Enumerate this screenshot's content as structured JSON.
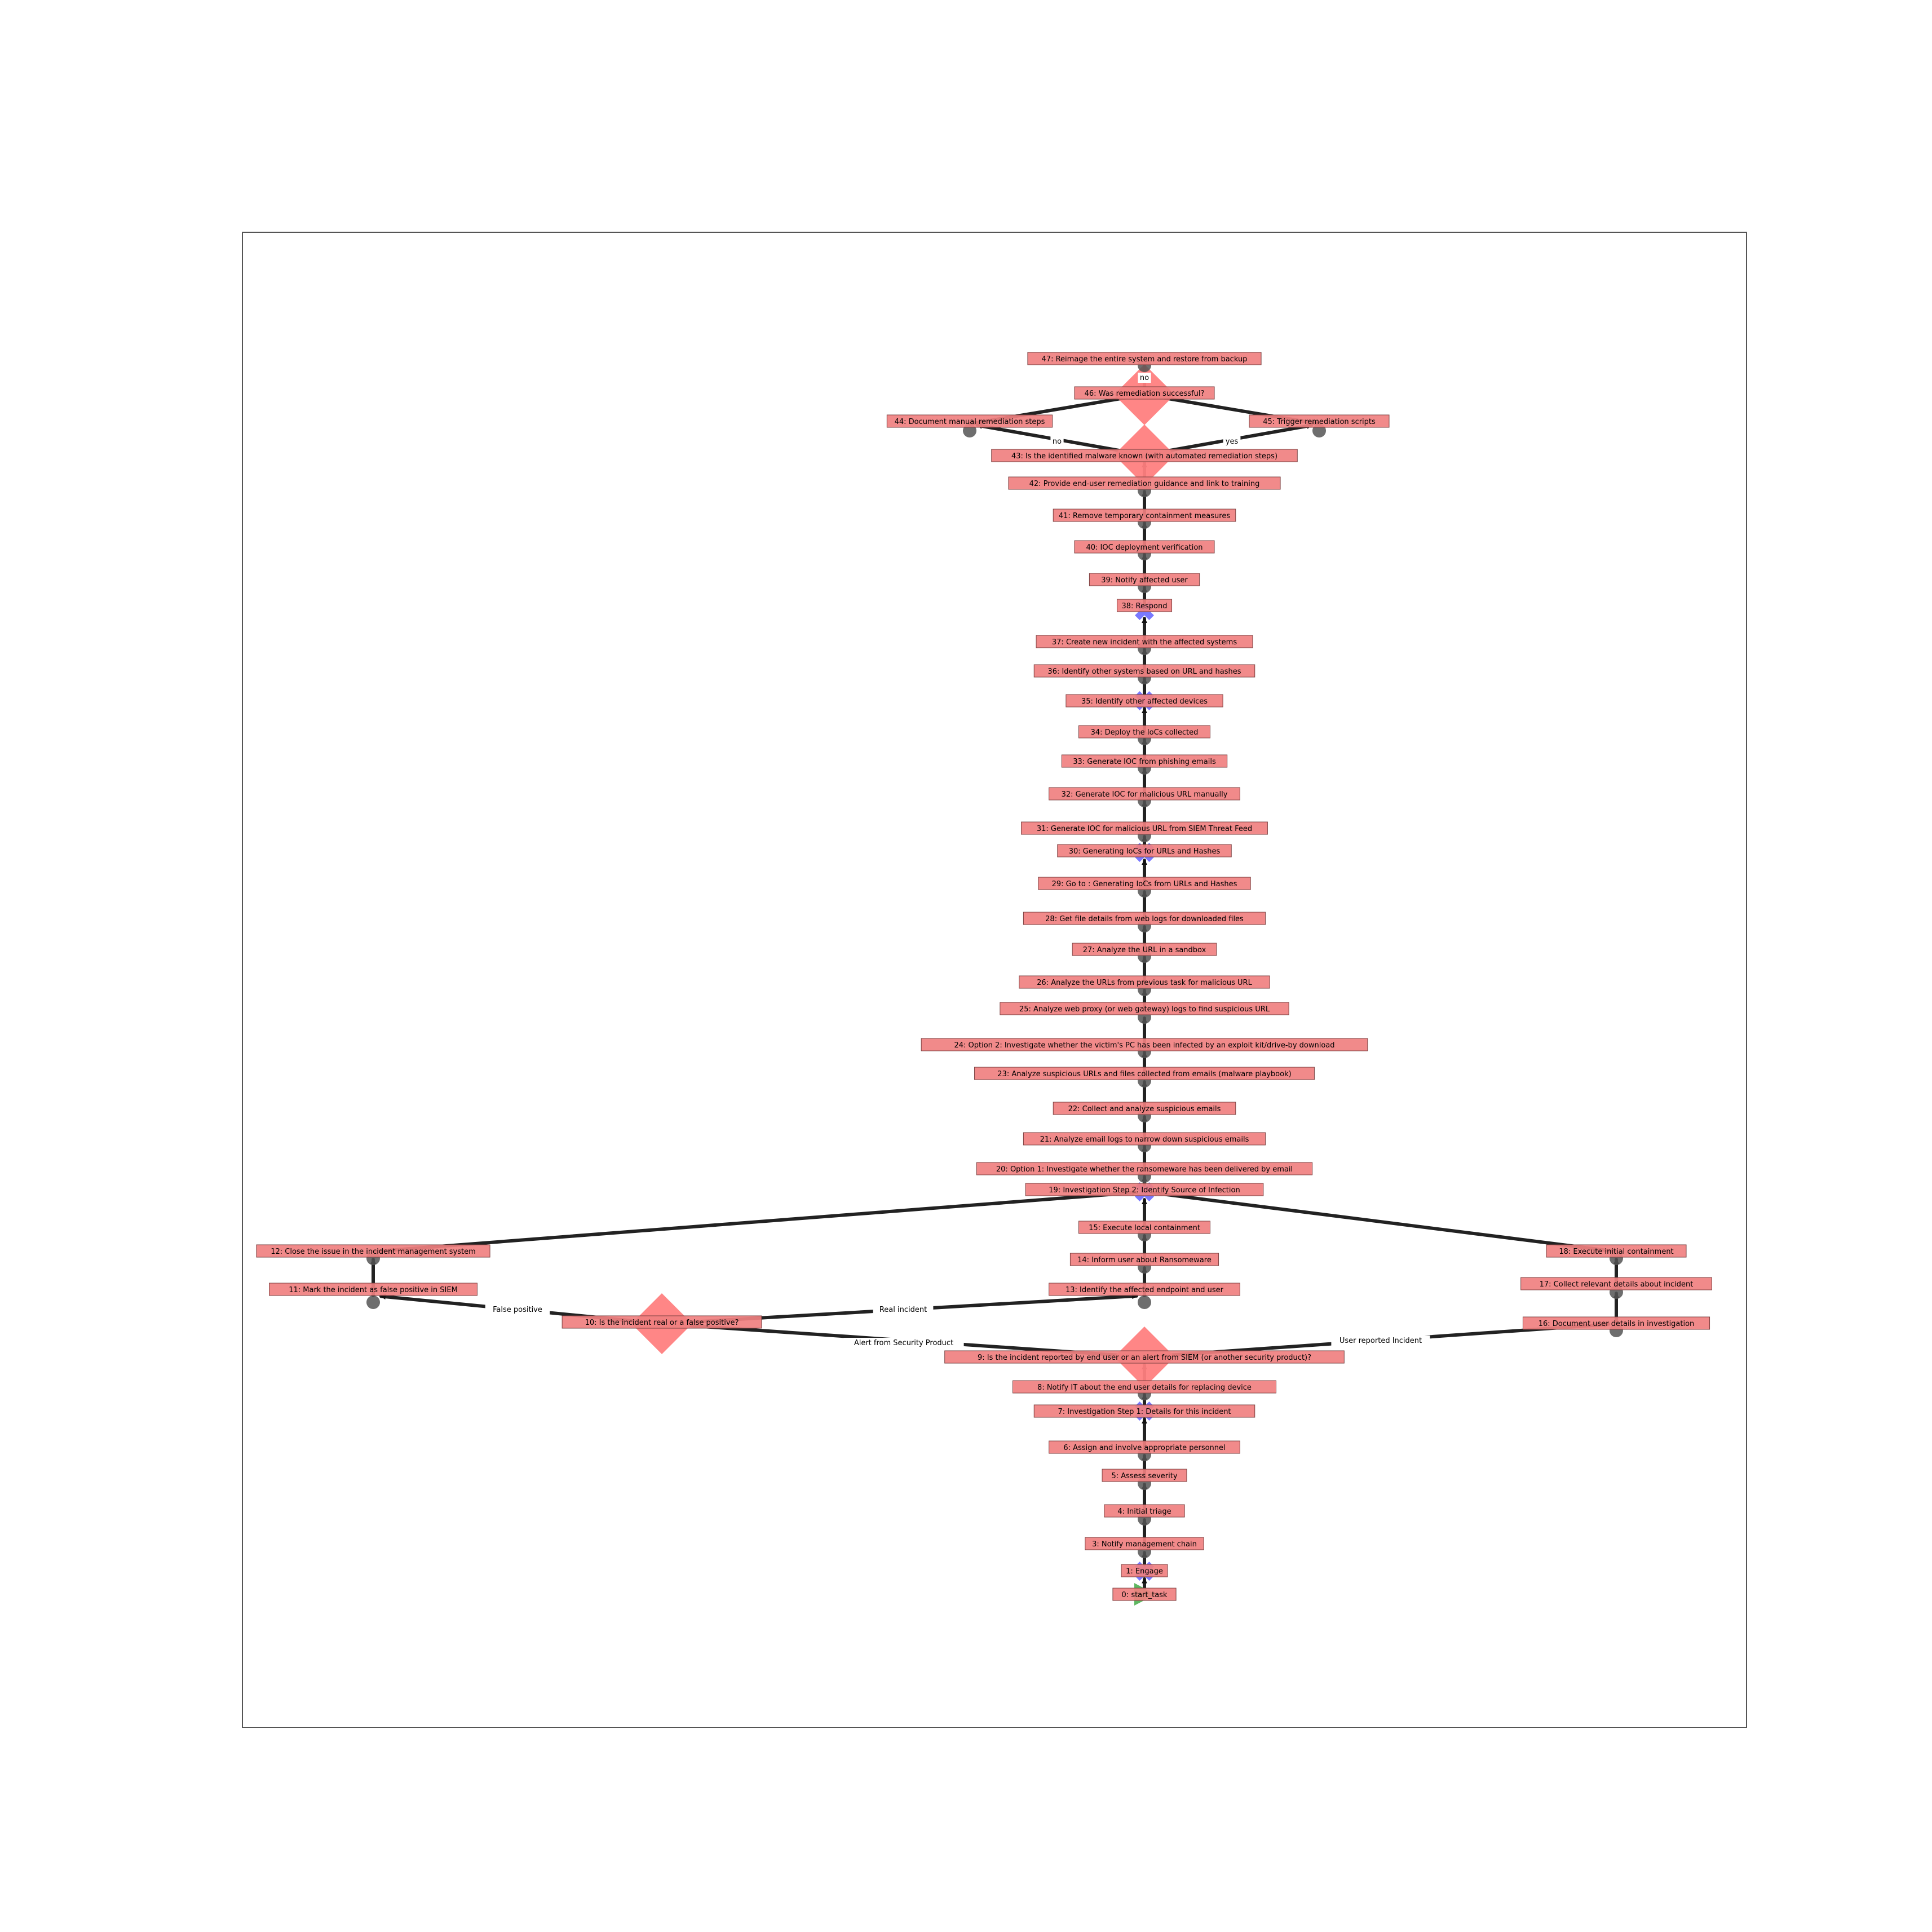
{
  "colors": {
    "node_box": "#f08080",
    "node_box_border": "#7a4040",
    "decision": "#ff7f7f",
    "gateway": "#6a6aff",
    "start": "#4caf50",
    "edge": "#222222",
    "connector": "#555555"
  },
  "nodes": [
    {
      "id": 0,
      "label": "0: start_task",
      "shape": "start-triangle"
    },
    {
      "id": 1,
      "label": "1: Engage",
      "shape": "gateway"
    },
    {
      "id": 3,
      "label": "3: Notify management chain",
      "shape": "circle"
    },
    {
      "id": 4,
      "label": "4: Initial triage",
      "shape": "circle"
    },
    {
      "id": 5,
      "label": "5: Assess severity",
      "shape": "circle"
    },
    {
      "id": 6,
      "label": "6: Assign and involve appropriate personnel",
      "shape": "circle"
    },
    {
      "id": 7,
      "label": "7: Investigation Step 1: Details for this incident",
      "shape": "gateway"
    },
    {
      "id": 8,
      "label": "8: Notify IT about the end user details for replacing device",
      "shape": "circle"
    },
    {
      "id": 9,
      "label": "9: Is the incident reported by end user or an alert from SIEM (or another security product)?",
      "shape": "decision"
    },
    {
      "id": 10,
      "label": "10: Is the incident real or a false positive?",
      "shape": "decision"
    },
    {
      "id": 11,
      "label": "11: Mark the incident as false positive in SIEM",
      "shape": "circle"
    },
    {
      "id": 12,
      "label": "12: Close the issue in the incident management system",
      "shape": "circle"
    },
    {
      "id": 13,
      "label": "13: Identify the affected endpoint and user",
      "shape": "circle"
    },
    {
      "id": 14,
      "label": "14: Inform user about Ransomeware",
      "shape": "circle"
    },
    {
      "id": 15,
      "label": "15: Execute local containment",
      "shape": "circle"
    },
    {
      "id": 16,
      "label": "16: Document user details in investigation",
      "shape": "circle"
    },
    {
      "id": 17,
      "label": "17: Collect relevant details about incident",
      "shape": "circle"
    },
    {
      "id": 18,
      "label": "18: Execute initial containment",
      "shape": "circle"
    },
    {
      "id": 19,
      "label": "19: Investigation Step 2: Identify Source of Infection",
      "shape": "gateway"
    },
    {
      "id": 20,
      "label": "20: Option 1: Investigate whether the ransomeware has been delivered by email",
      "shape": "circle"
    },
    {
      "id": 21,
      "label": "21: Analyze email logs to narrow down suspicious emails",
      "shape": "circle"
    },
    {
      "id": 22,
      "label": "22: Collect and analyze suspicious emails",
      "shape": "circle"
    },
    {
      "id": 23,
      "label": "23: Analyze suspicious URLs and files collected from emails (malware playbook)",
      "shape": "circle"
    },
    {
      "id": 24,
      "label": "24: Option 2: Investigate whether the victim's PC has been infected by an exploit kit/drive-by download",
      "shape": "circle"
    },
    {
      "id": 25,
      "label": "25: Analyze web proxy (or web gateway) logs to find suspicious URL",
      "shape": "circle"
    },
    {
      "id": 26,
      "label": "26: Analyze the URLs from previous task for malicious URL",
      "shape": "circle"
    },
    {
      "id": 27,
      "label": "27: Analyze the URL in a sandbox",
      "shape": "circle"
    },
    {
      "id": 28,
      "label": "28: Get file details from web logs for downloaded files",
      "shape": "circle"
    },
    {
      "id": 29,
      "label": "29: Go to : Generating IoCs from URLs and Hashes",
      "shape": "circle"
    },
    {
      "id": 30,
      "label": "30: Generating IoCs for URLs and Hashes",
      "shape": "gateway"
    },
    {
      "id": 31,
      "label": "31: Generate IOC for malicious URL from SIEM Threat Feed",
      "shape": "circle"
    },
    {
      "id": 32,
      "label": "32: Generate IOC for malicious URL manually",
      "shape": "circle"
    },
    {
      "id": 33,
      "label": "33: Generate IOC from phishing emails",
      "shape": "circle"
    },
    {
      "id": 34,
      "label": "34: Deploy the IoCs collected",
      "shape": "circle"
    },
    {
      "id": 35,
      "label": "35: Identify other affected devices",
      "shape": "gateway"
    },
    {
      "id": 36,
      "label": "36: Identify other systems based on URL and hashes",
      "shape": "circle"
    },
    {
      "id": 37,
      "label": "37: Create new incident with the affected systems",
      "shape": "circle"
    },
    {
      "id": 38,
      "label": "38: Respond",
      "shape": "gateway"
    },
    {
      "id": 39,
      "label": "39: Notify affected user",
      "shape": "circle"
    },
    {
      "id": 40,
      "label": "40: IOC deployment verification",
      "shape": "circle"
    },
    {
      "id": 41,
      "label": "41: Remove temporary containment measures",
      "shape": "circle"
    },
    {
      "id": 42,
      "label": "42: Provide end-user remediation guidance and link to training",
      "shape": "circle"
    },
    {
      "id": 43,
      "label": "43: Is the identified malware known (with automated remediation steps)",
      "shape": "decision"
    },
    {
      "id": 44,
      "label": "44: Document manual remediation steps",
      "shape": "circle"
    },
    {
      "id": 45,
      "label": "45: Trigger remediation scripts",
      "shape": "circle"
    },
    {
      "id": 46,
      "label": "46: Was remediation successful?",
      "shape": "decision"
    },
    {
      "id": 47,
      "label": "47: Reimage the entire system and restore from backup",
      "shape": "circle"
    }
  ],
  "edges": [
    {
      "from": 0,
      "to": 1,
      "label": ""
    },
    {
      "from": 1,
      "to": 3,
      "label": ""
    },
    {
      "from": 3,
      "to": 4,
      "label": ""
    },
    {
      "from": 4,
      "to": 5,
      "label": ""
    },
    {
      "from": 5,
      "to": 6,
      "label": ""
    },
    {
      "from": 6,
      "to": 7,
      "label": ""
    },
    {
      "from": 7,
      "to": 8,
      "label": ""
    },
    {
      "from": 8,
      "to": 9,
      "label": ""
    },
    {
      "from": 9,
      "to": 10,
      "label": "Alert from Security Product"
    },
    {
      "from": 9,
      "to": 16,
      "label": "User reported Incident"
    },
    {
      "from": 10,
      "to": 11,
      "label": "False positive"
    },
    {
      "from": 10,
      "to": 13,
      "label": "Real incident"
    },
    {
      "from": 11,
      "to": 12,
      "label": ""
    },
    {
      "from": 12,
      "to": 19,
      "label": ""
    },
    {
      "from": 13,
      "to": 14,
      "label": ""
    },
    {
      "from": 14,
      "to": 15,
      "label": ""
    },
    {
      "from": 15,
      "to": 19,
      "label": ""
    },
    {
      "from": 16,
      "to": 17,
      "label": ""
    },
    {
      "from": 17,
      "to": 18,
      "label": ""
    },
    {
      "from": 18,
      "to": 19,
      "label": ""
    },
    {
      "from": 19,
      "to": 20,
      "label": ""
    },
    {
      "from": 20,
      "to": 21,
      "label": ""
    },
    {
      "from": 21,
      "to": 22,
      "label": ""
    },
    {
      "from": 22,
      "to": 23,
      "label": ""
    },
    {
      "from": 23,
      "to": 24,
      "label": ""
    },
    {
      "from": 24,
      "to": 25,
      "label": ""
    },
    {
      "from": 25,
      "to": 26,
      "label": ""
    },
    {
      "from": 26,
      "to": 27,
      "label": ""
    },
    {
      "from": 27,
      "to": 28,
      "label": ""
    },
    {
      "from": 28,
      "to": 29,
      "label": ""
    },
    {
      "from": 29,
      "to": 30,
      "label": ""
    },
    {
      "from": 30,
      "to": 31,
      "label": ""
    },
    {
      "from": 31,
      "to": 32,
      "label": ""
    },
    {
      "from": 32,
      "to": 33,
      "label": ""
    },
    {
      "from": 33,
      "to": 34,
      "label": ""
    },
    {
      "from": 34,
      "to": 35,
      "label": ""
    },
    {
      "from": 35,
      "to": 36,
      "label": ""
    },
    {
      "from": 36,
      "to": 37,
      "label": ""
    },
    {
      "from": 37,
      "to": 38,
      "label": ""
    },
    {
      "from": 38,
      "to": 39,
      "label": ""
    },
    {
      "from": 39,
      "to": 40,
      "label": ""
    },
    {
      "from": 40,
      "to": 41,
      "label": ""
    },
    {
      "from": 41,
      "to": 42,
      "label": ""
    },
    {
      "from": 42,
      "to": 43,
      "label": ""
    },
    {
      "from": 43,
      "to": 44,
      "label": "no"
    },
    {
      "from": 43,
      "to": 45,
      "label": "yes"
    },
    {
      "from": 44,
      "to": 46,
      "label": ""
    },
    {
      "from": 45,
      "to": 46,
      "label": ""
    },
    {
      "from": 46,
      "to": 47,
      "label": "no"
    }
  ]
}
